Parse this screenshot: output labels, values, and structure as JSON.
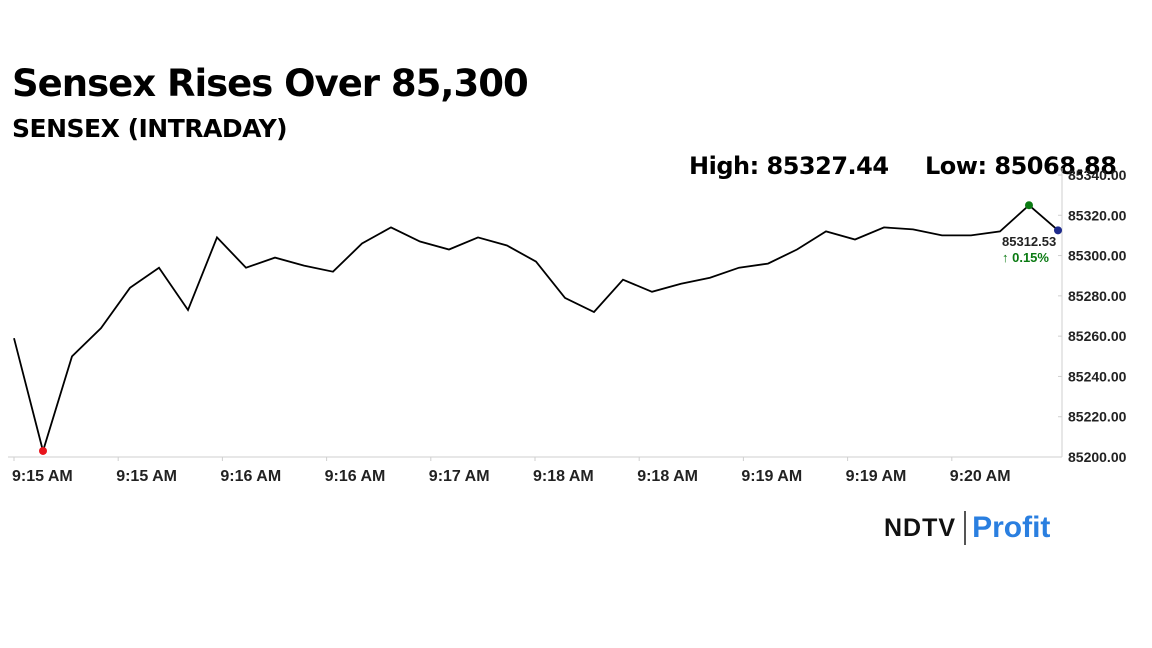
{
  "headline": "Sensex Rises Over 85,300",
  "subtitle": "SENSEX (INTRADAY)",
  "stats": {
    "high": "High: 85327.44",
    "low": "Low: 85068.88"
  },
  "logo": {
    "brand": "NDTV",
    "product": "Profit"
  },
  "chart_data": {
    "type": "line",
    "title": "",
    "xlabel": "",
    "ylabel": "",
    "ylim": [
      85200,
      85340
    ],
    "y_ticks": [
      85200,
      85220,
      85240,
      85260,
      85280,
      85300,
      85320,
      85340
    ],
    "y_tick_labels": [
      "85200.00",
      "85220.00",
      "85240.00",
      "85260.00",
      "85280.00",
      "85300.00",
      "85320.00",
      "85340.00"
    ],
    "x_tick_labels": [
      "9:15 AM",
      "9:15 AM",
      "9:16 AM",
      "9:16 AM",
      "9:17 AM",
      "9:18 AM",
      "9:18 AM",
      "9:19 AM",
      "9:19 AM",
      "9:20 AM"
    ],
    "grid": false,
    "series": [
      {
        "values": [
          85259,
          85203,
          85250,
          85264,
          85284,
          85294,
          85273,
          85309,
          85294,
          85299,
          85295,
          85292,
          85306,
          85314,
          85307,
          85303,
          85309,
          85305,
          85297,
          85279,
          85272,
          85288,
          85282,
          85286,
          85289,
          85294,
          85296,
          85303,
          85312,
          85308,
          85314,
          85313,
          85310,
          85310,
          85312,
          85325,
          85312.53
        ]
      }
    ],
    "markers": {
      "low_index": 1,
      "high_index": 35,
      "last_index": 36
    },
    "last_value_label": "85312.53",
    "change_label": "↑ 0.15%",
    "colors": {
      "line": "#000000",
      "low_marker": "#e8141c",
      "high_marker": "#0a7a12",
      "last_marker": "#1d2a8c",
      "change": "#0a7a12",
      "axis": "#cfcfcf",
      "profit_text": "#2a7fe0"
    }
  }
}
